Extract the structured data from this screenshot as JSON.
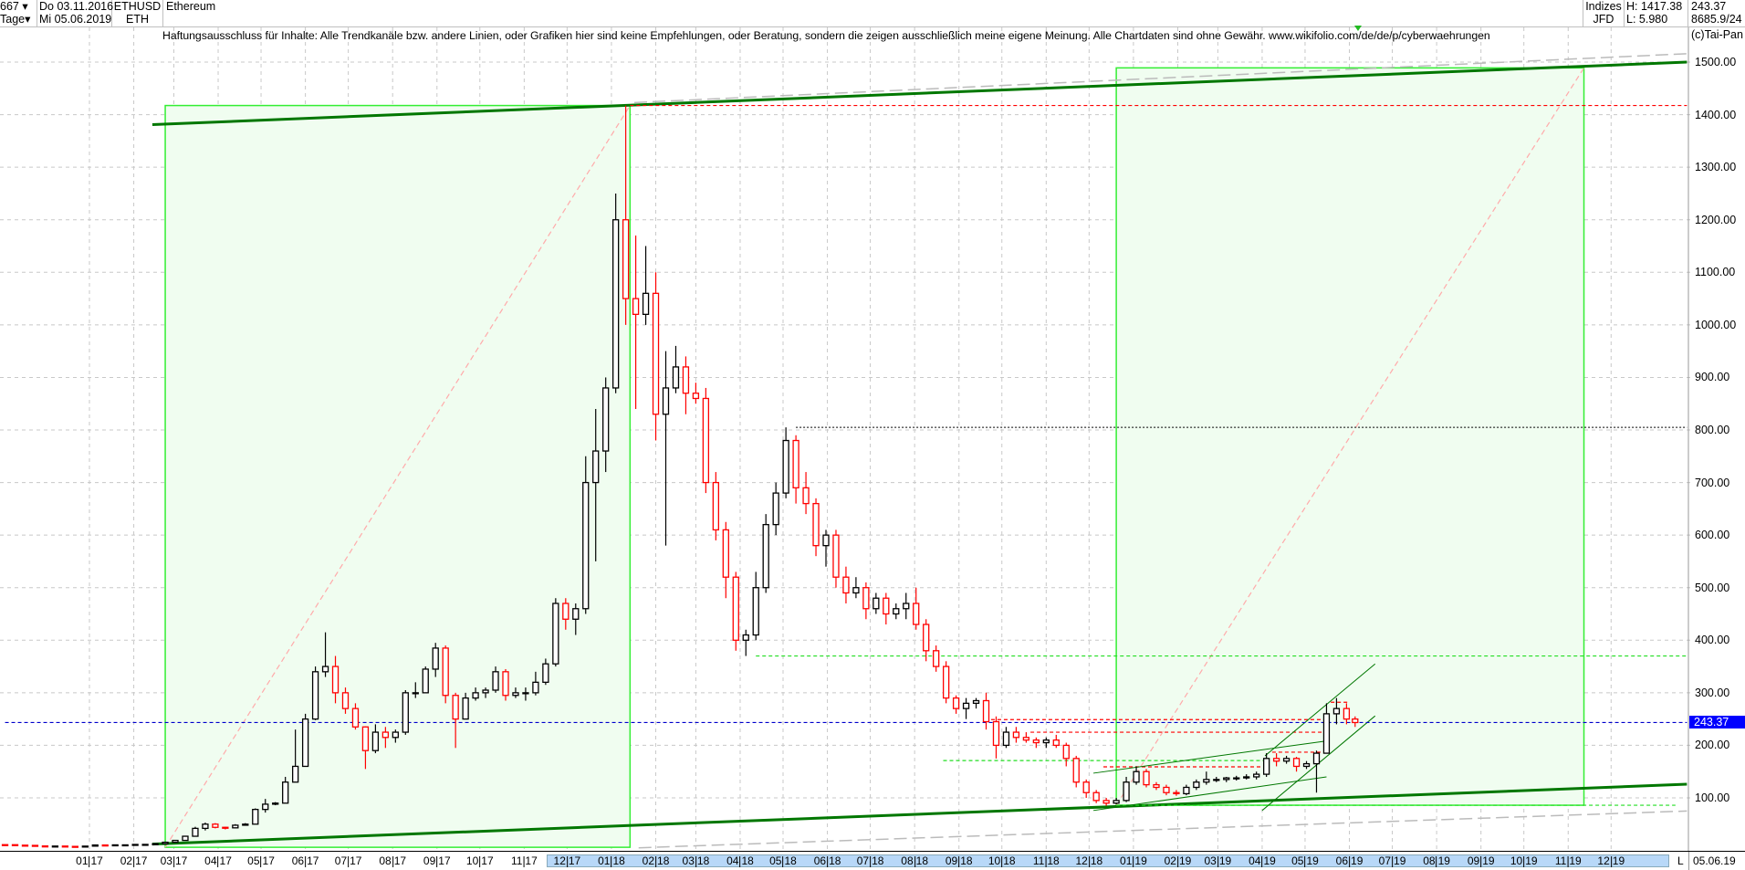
{
  "header": {
    "count": "667",
    "count_arrow": "▾",
    "period": "Tage",
    "start_date": "Do 03.11.2016",
    "end_date": "Mi 05.06.2019",
    "symbol": "ETHUSD",
    "symbol_short": "ETH",
    "name": "Ethereum",
    "category": "Indizes",
    "source": "JFD",
    "high": "H: 1417.38",
    "low": "L: 5.980",
    "last": "243.37",
    "extra": "8685.9/24"
  },
  "disclaimer": "Haftungsausschluss für Inhalte: Alle Trendkanäle bzw. andere Linien, oder Grafiken hier sind keine Empfehlungen, oder Beratung, sondern die zeigen ausschließlich meine eigene Meinung. Alle Chartdaten sind ohne Gewähr.  www.wikifolio.com/de/de/p/cyberwaehrungen",
  "copyright": "(c)Tai-Pan",
  "footer": {
    "scroll_button": "L",
    "end_date": "05.06.19"
  },
  "chart_data": {
    "type": "candlestick",
    "title": "Ethereum",
    "ylim": [
      0,
      1550
    ],
    "grid": true,
    "y_ticks": [
      "100.00",
      "200.00",
      "300.00",
      "400.00",
      "500.00",
      "600.00",
      "700.00",
      "800.00",
      "900.00",
      "1000.00",
      "1100.00",
      "1200.00",
      "1300.00",
      "1400.00",
      "1500.00"
    ],
    "x_ticks": [
      "01 17",
      "02 17",
      "03 17",
      "04 17",
      "05 17",
      "06 17",
      "07 17",
      "08 17",
      "09 17",
      "10 17",
      "11 17",
      "12 17",
      "01 18",
      "02 18",
      "03 18",
      "04 18",
      "05 18",
      "06 18",
      "07 18",
      "08 18",
      "09 18",
      "10 18",
      "11 18",
      "12 18",
      "01 19",
      "02 19",
      "03 19",
      "04 19",
      "05 19",
      "06 19",
      "07 19",
      "08 19",
      "09 19",
      "10 19",
      "11 19",
      "12 19"
    ],
    "current_price": "243.37",
    "colors": {
      "up": "#000000",
      "down": "#ff0000",
      "current": "#0000ff",
      "trend": "#007700",
      "box": "#33ee33",
      "box_fill": "#f0fdf0"
    },
    "ohlc": [
      [
        "2016-11-03",
        11.0,
        11.2,
        10.5,
        10.9
      ],
      [
        "2016-11-10",
        10.9,
        11.0,
        9.8,
        10.0
      ],
      [
        "2016-11-17",
        10.0,
        10.2,
        9.2,
        9.6
      ],
      [
        "2016-11-24",
        9.6,
        9.7,
        8.0,
        8.5
      ],
      [
        "2016-12-01",
        8.5,
        8.6,
        7.6,
        8.0
      ],
      [
        "2016-12-08",
        8.0,
        8.6,
        7.8,
        8.3
      ],
      [
        "2016-12-15",
        8.3,
        8.4,
        7.3,
        7.7
      ],
      [
        "2016-12-22",
        7.7,
        7.9,
        5.98,
        7.2
      ],
      [
        "2016-12-29",
        7.2,
        8.6,
        7.0,
        8.2
      ],
      [
        "2017-01-05",
        8.2,
        11.5,
        8.0,
        10.3
      ],
      [
        "2017-01-12",
        10.3,
        10.6,
        9.6,
        9.9
      ],
      [
        "2017-01-19",
        9.9,
        10.8,
        9.8,
        10.6
      ],
      [
        "2017-01-26",
        10.6,
        10.8,
        10.3,
        10.6
      ],
      [
        "2017-02-02",
        10.6,
        11.6,
        10.5,
        11.4
      ],
      [
        "2017-02-09",
        11.4,
        12.0,
        11.0,
        11.5
      ],
      [
        "2017-02-16",
        11.5,
        13.0,
        11.4,
        12.8
      ],
      [
        "2017-02-23",
        12.8,
        16.0,
        12.6,
        15.6
      ],
      [
        "2017-03-02",
        15.6,
        19.5,
        15.5,
        19.1
      ],
      [
        "2017-03-09",
        19.1,
        28.0,
        18.8,
        27.0
      ],
      [
        "2017-03-16",
        27.0,
        45.0,
        26.5,
        42.0
      ],
      [
        "2017-03-23",
        42.0,
        53.0,
        38.0,
        50.0
      ],
      [
        "2017-03-30",
        50.0,
        52.0,
        42.0,
        44.0
      ],
      [
        "2017-04-06",
        44.0,
        45.0,
        40.0,
        43.0
      ],
      [
        "2017-04-13",
        43.0,
        50.0,
        42.0,
        48.0
      ],
      [
        "2017-04-20",
        48.0,
        52.0,
        47.0,
        50.0
      ],
      [
        "2017-04-27",
        50.0,
        80.0,
        50.0,
        78.0
      ],
      [
        "2017-05-04",
        78.0,
        98.0,
        72.0,
        88.0
      ],
      [
        "2017-05-11",
        88.0,
        92.0,
        86.0,
        90.0
      ],
      [
        "2017-05-18",
        90.0,
        140.0,
        90.0,
        130.0
      ],
      [
        "2017-05-25",
        130.0,
        230.0,
        130.0,
        160.0
      ],
      [
        "2017-06-01",
        160.0,
        260.0,
        160.0,
        250.0
      ],
      [
        "2017-06-08",
        250.0,
        350.0,
        248.0,
        340.0
      ],
      [
        "2017-06-15",
        340.0,
        415.0,
        330.0,
        350.0
      ],
      [
        "2017-06-22",
        350.0,
        370.0,
        280.0,
        300.0
      ],
      [
        "2017-06-29",
        300.0,
        310.0,
        260.0,
        270.0
      ],
      [
        "2017-07-06",
        270.0,
        280.0,
        230.0,
        235.0
      ],
      [
        "2017-07-13",
        235.0,
        236.0,
        155.0,
        190.0
      ],
      [
        "2017-07-20",
        190.0,
        240.0,
        185.0,
        225.0
      ],
      [
        "2017-07-27",
        225.0,
        235.0,
        195.0,
        215.0
      ],
      [
        "2017-08-03",
        215.0,
        230.0,
        205.0,
        225.0
      ],
      [
        "2017-08-10",
        225.0,
        305.0,
        220.0,
        300.0
      ],
      [
        "2017-08-17",
        300.0,
        320.0,
        290.0,
        300.0
      ],
      [
        "2017-08-24",
        300.0,
        350.0,
        300.0,
        345.0
      ],
      [
        "2017-08-31",
        345.0,
        395.0,
        330.0,
        385.0
      ],
      [
        "2017-09-07",
        385.0,
        390.0,
        280.0,
        295.0
      ],
      [
        "2017-09-14",
        295.0,
        300.0,
        195.0,
        250.0
      ],
      [
        "2017-09-21",
        250.0,
        300.0,
        250.0,
        290.0
      ],
      [
        "2017-09-28",
        290.0,
        310.0,
        285.0,
        300.0
      ],
      [
        "2017-10-05",
        300.0,
        310.0,
        290.0,
        305.0
      ],
      [
        "2017-10-12",
        305.0,
        350.0,
        300.0,
        340.0
      ],
      [
        "2017-10-19",
        340.0,
        345.0,
        285.0,
        295.0
      ],
      [
        "2017-10-26",
        295.0,
        310.0,
        290.0,
        300.0
      ],
      [
        "2017-11-02",
        300.0,
        310.0,
        285.0,
        300.0
      ],
      [
        "2017-11-09",
        300.0,
        340.0,
        295.0,
        320.0
      ],
      [
        "2017-11-16",
        320.0,
        365.0,
        315.0,
        355.0
      ],
      [
        "2017-11-23",
        355.0,
        480.0,
        350.0,
        470.0
      ],
      [
        "2017-11-30",
        470.0,
        480.0,
        420.0,
        440.0
      ],
      [
        "2017-12-07",
        440.0,
        470.0,
        410.0,
        460.0
      ],
      [
        "2017-12-14",
        460.0,
        750.0,
        450.0,
        700.0
      ],
      [
        "2017-12-21",
        700.0,
        840.0,
        550.0,
        760.0
      ],
      [
        "2017-12-28",
        760.0,
        900.0,
        720.0,
        880.0
      ],
      [
        "2018-01-04",
        880.0,
        1250.0,
        870.0,
        1200.0
      ],
      [
        "2018-01-11",
        1200.0,
        1417.38,
        1000.0,
        1050.0
      ],
      [
        "2018-01-18",
        1050.0,
        1170.0,
        840.0,
        1020.0
      ],
      [
        "2018-01-25",
        1020.0,
        1150.0,
        1000.0,
        1060.0
      ],
      [
        "2018-02-01",
        1060.0,
        1100.0,
        780.0,
        830.0
      ],
      [
        "2018-02-08",
        830.0,
        950.0,
        580.0,
        880.0
      ],
      [
        "2018-02-15",
        880.0,
        960.0,
        870.0,
        920.0
      ],
      [
        "2018-02-22",
        920.0,
        940.0,
        830.0,
        870.0
      ],
      [
        "2018-03-01",
        870.0,
        890.0,
        850.0,
        860.0
      ],
      [
        "2018-03-08",
        860.0,
        880.0,
        680.0,
        700.0
      ],
      [
        "2018-03-15",
        700.0,
        720.0,
        590.0,
        610.0
      ],
      [
        "2018-03-22",
        610.0,
        625.0,
        480.0,
        520.0
      ],
      [
        "2018-03-29",
        520.0,
        530.0,
        380.0,
        400.0
      ],
      [
        "2018-04-05",
        400.0,
        420.0,
        370.0,
        410.0
      ],
      [
        "2018-04-12",
        410.0,
        530.0,
        400.0,
        500.0
      ],
      [
        "2018-04-19",
        500.0,
        640.0,
        490.0,
        620.0
      ],
      [
        "2018-04-26",
        620.0,
        700.0,
        600.0,
        680.0
      ],
      [
        "2018-05-03",
        680.0,
        805.0,
        670.0,
        780.0
      ],
      [
        "2018-05-10",
        780.0,
        790.0,
        660.0,
        690.0
      ],
      [
        "2018-05-17",
        690.0,
        720.0,
        640.0,
        660.0
      ],
      [
        "2018-05-24",
        660.0,
        670.0,
        560.0,
        580.0
      ],
      [
        "2018-05-31",
        580.0,
        610.0,
        540.0,
        600.0
      ],
      [
        "2018-06-07",
        600.0,
        610.0,
        500.0,
        520.0
      ],
      [
        "2018-06-14",
        520.0,
        540.0,
        470.0,
        490.0
      ],
      [
        "2018-06-21",
        490.0,
        520.0,
        480.0,
        500.0
      ],
      [
        "2018-06-28",
        500.0,
        510.0,
        440.0,
        460.0
      ],
      [
        "2018-07-05",
        460.0,
        490.0,
        450.0,
        480.0
      ],
      [
        "2018-07-12",
        480.0,
        490.0,
        430.0,
        450.0
      ],
      [
        "2018-07-19",
        450.0,
        470.0,
        440.0,
        460.0
      ],
      [
        "2018-07-26",
        460.0,
        490.0,
        440.0,
        470.0
      ],
      [
        "2018-08-02",
        470.0,
        500.0,
        420.0,
        430.0
      ],
      [
        "2018-08-09",
        430.0,
        440.0,
        360.0,
        380.0
      ],
      [
        "2018-08-16",
        380.0,
        390.0,
        340.0,
        350.0
      ],
      [
        "2018-08-23",
        350.0,
        360.0,
        280.0,
        290.0
      ],
      [
        "2018-08-30",
        290.0,
        295.0,
        260.0,
        270.0
      ],
      [
        "2018-09-06",
        270.0,
        290.0,
        250.0,
        280.0
      ],
      [
        "2018-09-13",
        280.0,
        290.0,
        270.0,
        285.0
      ],
      [
        "2018-09-20",
        285.0,
        300.0,
        230.0,
        245.0
      ],
      [
        "2018-09-27",
        245.0,
        255.0,
        175.0,
        200.0
      ],
      [
        "2018-10-04",
        200.0,
        235.0,
        195.0,
        225.0
      ],
      [
        "2018-10-11",
        225.0,
        235.0,
        205.0,
        215.0
      ],
      [
        "2018-10-18",
        215.0,
        225.0,
        205.0,
        210.0
      ],
      [
        "2018-10-25",
        210.0,
        215.0,
        195.0,
        205.0
      ],
      [
        "2018-11-01",
        205.0,
        215.0,
        195.0,
        210.0
      ],
      [
        "2018-11-08",
        210.0,
        220.0,
        195.0,
        200.0
      ],
      [
        "2018-11-15",
        200.0,
        205.0,
        160.0,
        175.0
      ],
      [
        "2018-11-22",
        175.0,
        180.0,
        120.0,
        130.0
      ],
      [
        "2018-11-29",
        130.0,
        135.0,
        100.0,
        110.0
      ],
      [
        "2018-12-06",
        110.0,
        115.0,
        90.0,
        95.0
      ],
      [
        "2018-12-13",
        95.0,
        100.0,
        85.0,
        90.0
      ],
      [
        "2018-12-20",
        90.0,
        100.0,
        88.0,
        95.0
      ],
      [
        "2018-12-27",
        95.0,
        140.0,
        92.0,
        130.0
      ],
      [
        "2019-01-03",
        130.0,
        160.0,
        125.0,
        150.0
      ],
      [
        "2019-01-10",
        150.0,
        155.0,
        120.0,
        125.0
      ],
      [
        "2019-01-17",
        125.0,
        130.0,
        115.0,
        120.0
      ],
      [
        "2019-01-24",
        120.0,
        125.0,
        105.0,
        110.0
      ],
      [
        "2019-01-31",
        110.0,
        115.0,
        104.0,
        108.0
      ],
      [
        "2019-02-07",
        108.0,
        125.0,
        105.0,
        120.0
      ],
      [
        "2019-02-14",
        120.0,
        135.0,
        115.0,
        130.0
      ],
      [
        "2019-02-21",
        130.0,
        150.0,
        125.0,
        135.0
      ],
      [
        "2019-02-28",
        135.0,
        140.0,
        130.0,
        135.0
      ],
      [
        "2019-03-07",
        135.0,
        140.0,
        130.0,
        138.0
      ],
      [
        "2019-03-14",
        138.0,
        142.0,
        133.0,
        138.0
      ],
      [
        "2019-03-21",
        138.0,
        145.0,
        135.0,
        140.0
      ],
      [
        "2019-03-28",
        140.0,
        150.0,
        135.0,
        145.0
      ],
      [
        "2019-04-04",
        145.0,
        185.0,
        140.0,
        175.0
      ],
      [
        "2019-04-11",
        175.0,
        185.0,
        160.0,
        170.0
      ],
      [
        "2019-04-18",
        170.0,
        180.0,
        165.0,
        175.0
      ],
      [
        "2019-04-25",
        175.0,
        178.0,
        150.0,
        160.0
      ],
      [
        "2019-05-02",
        160.0,
        170.0,
        155.0,
        165.0
      ],
      [
        "2019-05-09",
        165.0,
        190.0,
        110.0,
        185.0
      ],
      [
        "2019-05-16",
        185.0,
        280.0,
        185.0,
        260.0
      ],
      [
        "2019-05-23",
        260.0,
        290.0,
        240.0,
        270.0
      ],
      [
        "2019-05-30",
        270.0,
        280.0,
        240.0,
        250.0
      ],
      [
        "2019-06-05",
        250.0,
        255.0,
        235.0,
        243.37
      ]
    ],
    "annotations": [
      {
        "kind": "box",
        "from": [
          "2017-02-23",
          6
        ],
        "to": [
          "2018-01-14",
          1417.38
        ]
      },
      {
        "kind": "box",
        "from": [
          "2018-12-20",
          86
        ],
        "to": [
          "2019-11-12",
          1489
        ]
      },
      {
        "kind": "line",
        "style": "dash-pink",
        "from": [
          "2017-02-23",
          6
        ],
        "to": [
          "2018-01-14",
          1417.38
        ]
      },
      {
        "kind": "line",
        "style": "dash-pink",
        "from": [
          "2018-12-20",
          86
        ],
        "to": [
          "2019-11-12",
          1489
        ]
      },
      {
        "kind": "line",
        "style": "dash-gray",
        "from": [
          "2018-01-17",
          1423
        ],
        "to": [
          "2020-01-23",
          1516
        ]
      },
      {
        "kind": "line",
        "style": "dash-gray",
        "from": [
          "2018-01-20",
          5
        ],
        "to": [
          "2020-01-23",
          75
        ]
      },
      {
        "kind": "line",
        "style": "thick-green",
        "from": [
          "2017-02-14",
          1381
        ],
        "to": [
          "2020-01-23",
          1500
        ]
      },
      {
        "kind": "line",
        "style": "thick-green",
        "from": [
          "2017-02-14",
          12
        ],
        "to": [
          "2020-01-23",
          126
        ]
      },
      {
        "kind": "line",
        "style": "dot-red",
        "from": [
          "2018-01-14",
          1417.38
        ],
        "to": [
          "2020-01-23",
          1417.38
        ]
      },
      {
        "kind": "line",
        "style": "dot-black",
        "from": [
          "2018-05-10",
          805
        ],
        "to": [
          "2020-01-23",
          805
        ]
      },
      {
        "kind": "line",
        "style": "dot-green",
        "from": [
          "2018-04-12",
          370
        ],
        "to": [
          "2020-01-23",
          370
        ]
      },
      {
        "kind": "line",
        "style": "dot-green",
        "from": [
          "2018-12-20",
          86
        ],
        "to": [
          "2020-01-15",
          86
        ]
      },
      {
        "kind": "line",
        "style": "dot-green",
        "from": [
          "2018-08-21",
          171
        ],
        "to": [
          "2019-04-03",
          171
        ]
      },
      {
        "kind": "line",
        "style": "dot-red",
        "from": [
          "2018-09-19",
          249
        ],
        "to": [
          "2019-05-16",
          249
        ]
      },
      {
        "kind": "line",
        "style": "dot-red",
        "from": [
          "2018-10-21",
          225
        ],
        "to": [
          "2019-05-16",
          225
        ]
      },
      {
        "kind": "line",
        "style": "dot-red",
        "from": [
          "2019-04-08",
          187
        ],
        "to": [
          "2019-05-13",
          187
        ]
      },
      {
        "kind": "line",
        "style": "dot-red",
        "from": [
          "2018-12-11",
          159
        ],
        "to": [
          "2019-04-01",
          159
        ]
      },
      {
        "kind": "line",
        "style": "dot-red",
        "from": [
          "2019-05-19",
          282
        ],
        "to": [
          "2019-05-31",
          282
        ]
      },
      {
        "kind": "line",
        "style": "thin-green",
        "from": [
          "2018-12-04",
          147
        ],
        "to": [
          "2019-05-15",
          208
        ]
      },
      {
        "kind": "line",
        "style": "thin-green",
        "from": [
          "2018-12-04",
          76
        ],
        "to": [
          "2019-05-16",
          140
        ]
      },
      {
        "kind": "line",
        "style": "thin-green",
        "from": [
          "2019-04-03",
          180
        ],
        "to": [
          "2019-06-19",
          355
        ]
      },
      {
        "kind": "line",
        "style": "thin-green",
        "from": [
          "2019-04-01",
          76
        ],
        "to": [
          "2019-06-19",
          256
        ]
      },
      {
        "kind": "line",
        "style": "dash-blue",
        "from": [
          "2016-11-03",
          243.37
        ],
        "to": [
          "2020-01-23",
          243.37
        ]
      }
    ]
  }
}
